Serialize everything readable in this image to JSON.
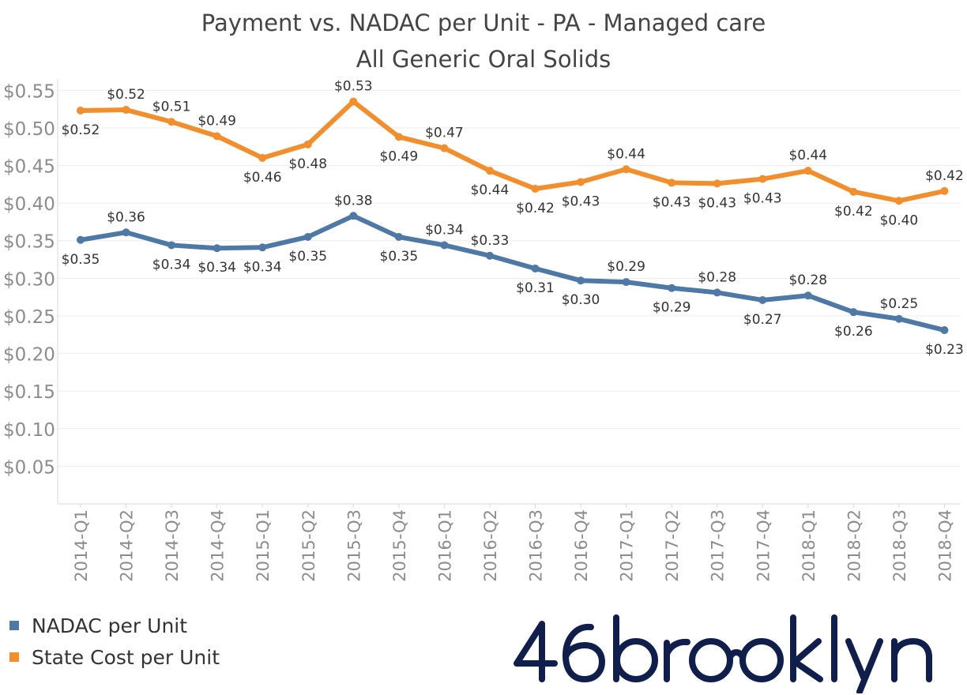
{
  "title_line1": "Payment vs. NADAC per Unit - PA - Managed care",
  "title_line2": "All Generic Oral Solids",
  "legend": [
    {
      "label": "NADAC per Unit",
      "color": "#4e79a7"
    },
    {
      "label": "State Cost per Unit",
      "color": "#f28e2b"
    }
  ],
  "logo_text": "46brooklyn",
  "chart_data": {
    "type": "line",
    "title": "Payment vs. NADAC per Unit - PA - Managed care",
    "subtitle": "All Generic Oral Solids",
    "categories": [
      "2014-Q1",
      "2014-Q2",
      "2014-Q3",
      "2014-Q4",
      "2015-Q1",
      "2015-Q2",
      "2015-Q3",
      "2015-Q4",
      "2016-Q1",
      "2016-Q2",
      "2016-Q3",
      "2016-Q4",
      "2017-Q1",
      "2017-Q2",
      "2017-Q3",
      "2017-Q4",
      "2018-Q1",
      "2018-Q2",
      "2018-Q3",
      "2018-Q4"
    ],
    "y_ticks": [
      "$0.05",
      "$0.10",
      "$0.15",
      "$0.20",
      "$0.25",
      "$0.30",
      "$0.35",
      "$0.40",
      "$0.45",
      "$0.50",
      "$0.55"
    ],
    "y_tick_values": [
      0.05,
      0.1,
      0.15,
      0.2,
      0.25,
      0.3,
      0.35,
      0.4,
      0.45,
      0.5,
      0.55
    ],
    "ylim": [
      0,
      0.565
    ],
    "grid": true,
    "legend_position": "bottom-left",
    "series": [
      {
        "name": "State Cost per Unit",
        "color": "#f28e2b",
        "values": [
          0.523,
          0.524,
          0.508,
          0.489,
          0.46,
          0.478,
          0.535,
          0.488,
          0.473,
          0.443,
          0.419,
          0.428,
          0.445,
          0.427,
          0.426,
          0.432,
          0.443,
          0.415,
          0.403,
          0.416
        ],
        "labels": [
          "$0.52",
          "$0.52",
          "$0.51",
          "$0.49",
          "$0.46",
          "$0.48",
          "$0.53",
          "$0.49",
          "$0.47",
          "$0.44",
          "$0.42",
          "$0.43",
          "$0.44",
          "$0.43",
          "$0.43",
          "$0.43",
          "$0.44",
          "$0.42",
          "$0.40",
          "$0.42"
        ],
        "label_pos": [
          "below",
          "above",
          "above",
          "above",
          "below",
          "below",
          "above",
          "below",
          "above",
          "below",
          "below",
          "below",
          "above",
          "below",
          "below",
          "below",
          "above",
          "below",
          "below",
          "above"
        ]
      },
      {
        "name": "NADAC per Unit",
        "color": "#4e79a7",
        "values": [
          0.351,
          0.361,
          0.344,
          0.34,
          0.341,
          0.355,
          0.383,
          0.355,
          0.344,
          0.33,
          0.313,
          0.297,
          0.295,
          0.287,
          0.281,
          0.271,
          0.277,
          0.255,
          0.246,
          0.231
        ],
        "labels": [
          "$0.35",
          "$0.36",
          "$0.34",
          "$0.34",
          "$0.34",
          "$0.35",
          "$0.38",
          "$0.35",
          "$0.34",
          "$0.33",
          "$0.31",
          "$0.30",
          "$0.29",
          "$0.29",
          "$0.28",
          "$0.27",
          "$0.28",
          "$0.26",
          "$0.25",
          "$0.23"
        ],
        "label_pos": [
          "below",
          "above",
          "below",
          "below",
          "below",
          "below",
          "above",
          "below",
          "above",
          "above",
          "below",
          "below",
          "above",
          "below",
          "above",
          "below",
          "above",
          "below",
          "above",
          "below"
        ]
      }
    ]
  }
}
